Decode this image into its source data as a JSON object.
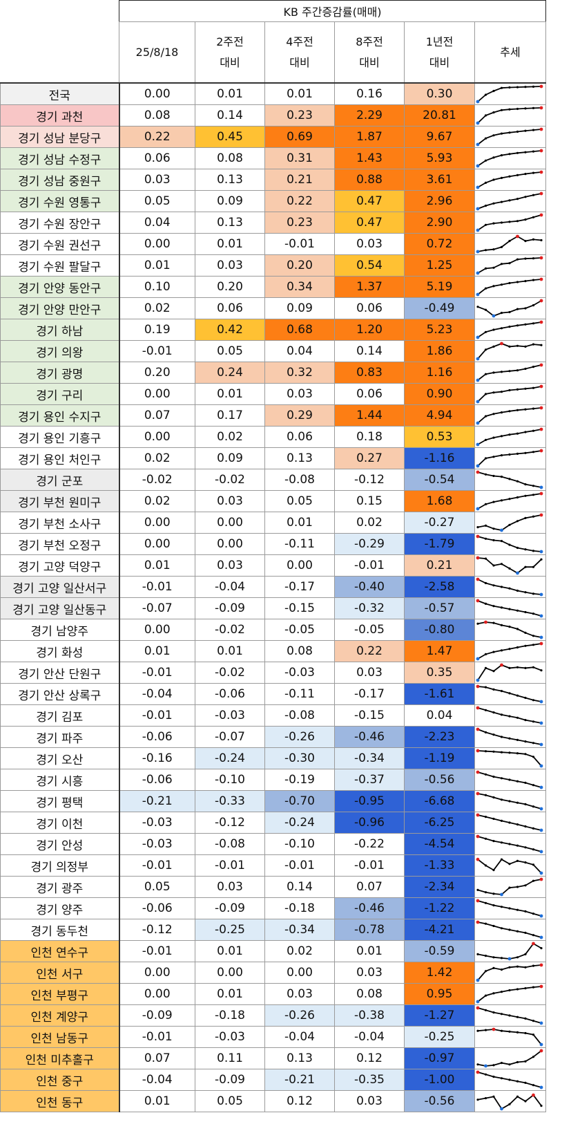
{
  "title": "KB 주간증감률(매매)",
  "headers": [
    [
      "25/8/18"
    ],
    [
      "2주전",
      "대비"
    ],
    [
      "4주전",
      "대비"
    ],
    [
      "8주전",
      "대비"
    ],
    [
      "1년전",
      "대비"
    ],
    [
      "추세"
    ]
  ],
  "rows": [
    {
      "name": "전국",
      "bg": "#f1f1f1",
      "values": [
        "0.00",
        "0.01",
        "0.01",
        "0.16",
        "0.30"
      ],
      "trend": [
        0.0,
        0.45,
        0.7,
        0.9,
        0.93,
        0.95,
        0.97,
        0.98,
        1.0
      ]
    },
    {
      "name": "경기 과천",
      "bg": "#f8c6c6",
      "values": [
        "0.08",
        "0.14",
        "0.23",
        "2.29",
        "20.81"
      ],
      "trend": [
        0.0,
        0.5,
        0.7,
        0.85,
        0.9,
        0.93,
        0.96,
        0.98,
        1.0
      ]
    },
    {
      "name": "경기 성남 분당구",
      "bg": "#f9ded8",
      "values": [
        "0.22",
        "0.45",
        "0.69",
        "1.87",
        "9.67"
      ],
      "trend": [
        0.0,
        0.4,
        0.6,
        0.72,
        0.78,
        0.84,
        0.9,
        0.95,
        1.0
      ]
    },
    {
      "name": "경기 성남 수정구",
      "bg": "#e2efda",
      "values": [
        "0.06",
        "0.08",
        "0.31",
        "1.43",
        "5.93"
      ],
      "trend": [
        0.0,
        0.35,
        0.55,
        0.7,
        0.78,
        0.85,
        0.9,
        0.95,
        1.0
      ]
    },
    {
      "name": "경기 성남 중원구",
      "bg": "#e2efda",
      "values": [
        "0.03",
        "0.13",
        "0.21",
        "0.88",
        "3.61"
      ],
      "trend": [
        0.0,
        0.3,
        0.5,
        0.62,
        0.72,
        0.8,
        0.88,
        0.95,
        1.0
      ]
    },
    {
      "name": "경기 수원 영통구",
      "bg": "#e2efda",
      "values": [
        "0.05",
        "0.09",
        "0.22",
        "0.47",
        "2.96"
      ],
      "trend": [
        0.0,
        0.2,
        0.35,
        0.45,
        0.55,
        0.65,
        0.78,
        0.9,
        1.0
      ]
    },
    {
      "name": "경기 수원 장안구",
      "bg": "#ffffff",
      "values": [
        "0.04",
        "0.13",
        "0.23",
        "0.47",
        "2.90"
      ],
      "trend": [
        0.0,
        0.35,
        0.45,
        0.5,
        0.55,
        0.6,
        0.7,
        0.85,
        1.0
      ]
    },
    {
      "name": "경기 수원 권선구",
      "bg": "#ffffff",
      "values": [
        "0.00",
        "0.01",
        "-0.01",
        "0.03",
        "0.72"
      ],
      "trend": [
        0.0,
        0.1,
        0.15,
        0.3,
        0.7,
        1.0,
        0.7,
        0.8,
        0.75
      ]
    },
    {
      "name": "경기 수원 팔달구",
      "bg": "#ffffff",
      "values": [
        "0.01",
        "0.03",
        "0.20",
        "0.54",
        "1.25"
      ],
      "trend": [
        0.0,
        0.3,
        0.35,
        0.6,
        0.65,
        0.9,
        0.95,
        0.97,
        1.0
      ]
    },
    {
      "name": "경기 안양 동안구",
      "bg": "#e2efda",
      "values": [
        "0.10",
        "0.20",
        "0.34",
        "1.37",
        "5.19"
      ],
      "trend": [
        0.0,
        0.4,
        0.55,
        0.65,
        0.75,
        0.82,
        0.88,
        0.95,
        1.0
      ]
    },
    {
      "name": "경기 안양 만안구",
      "bg": "#e2efda",
      "values": [
        "0.02",
        "0.06",
        "0.09",
        "0.06",
        "-0.49"
      ],
      "trend": [
        0.6,
        0.4,
        0.0,
        0.2,
        0.25,
        0.45,
        0.5,
        0.7,
        1.0
      ]
    },
    {
      "name": "경기 하남",
      "bg": "#e2efda",
      "values": [
        "0.19",
        "0.42",
        "0.68",
        "1.20",
        "5.23"
      ],
      "trend": [
        0.0,
        0.35,
        0.5,
        0.6,
        0.7,
        0.78,
        0.85,
        0.92,
        1.0
      ]
    },
    {
      "name": "경기 의왕",
      "bg": "#e2efda",
      "values": [
        "-0.01",
        "0.05",
        "0.04",
        "0.14",
        "1.86"
      ],
      "trend": [
        0.0,
        0.6,
        0.8,
        1.0,
        0.8,
        0.85,
        0.8,
        0.95,
        0.9
      ]
    },
    {
      "name": "경기 광명",
      "bg": "#e2efda",
      "values": [
        "0.20",
        "0.24",
        "0.32",
        "0.83",
        "1.16"
      ],
      "trend": [
        0.0,
        0.4,
        0.5,
        0.55,
        0.6,
        0.65,
        0.75,
        0.88,
        1.0
      ]
    },
    {
      "name": "경기 구리",
      "bg": "#e2efda",
      "values": [
        "0.00",
        "0.01",
        "0.03",
        "0.06",
        "0.90"
      ],
      "trend": [
        0.0,
        0.5,
        0.6,
        0.65,
        0.75,
        0.8,
        0.85,
        0.9,
        1.0
      ]
    },
    {
      "name": "경기 용인 수지구",
      "bg": "#e2efda",
      "values": [
        "0.07",
        "0.17",
        "0.29",
        "1.44",
        "4.94"
      ],
      "trend": [
        0.0,
        0.45,
        0.6,
        0.7,
        0.78,
        0.85,
        0.9,
        0.95,
        1.0
      ]
    },
    {
      "name": "경기 용인 기흥구",
      "bg": "#ffffff",
      "values": [
        "0.00",
        "0.02",
        "0.06",
        "0.18",
        "0.53"
      ],
      "trend": [
        0.0,
        0.3,
        0.45,
        0.55,
        0.65,
        0.72,
        0.82,
        0.9,
        1.0
      ]
    },
    {
      "name": "경기 용인 처인구",
      "bg": "#ffffff",
      "values": [
        "0.02",
        "0.09",
        "0.13",
        "0.27",
        "-1.16"
      ],
      "trend": [
        0.0,
        0.5,
        0.6,
        0.7,
        0.75,
        0.8,
        0.85,
        0.92,
        1.0
      ]
    },
    {
      "name": "경기 군포",
      "bg": "#ececec",
      "values": [
        "-0.02",
        "-0.02",
        "-0.08",
        "-0.12",
        "-0.54"
      ],
      "trend": [
        1.0,
        0.85,
        0.75,
        0.7,
        0.55,
        0.4,
        0.2,
        0.1,
        0.0
      ]
    },
    {
      "name": "경기 부천 원미구",
      "bg": "#ececec",
      "values": [
        "0.02",
        "0.03",
        "0.05",
        "0.15",
        "1.68"
      ],
      "trend": [
        0.0,
        0.3,
        0.45,
        0.55,
        0.65,
        0.75,
        0.85,
        0.92,
        1.0
      ]
    },
    {
      "name": "경기 부천 소사구",
      "bg": "#ffffff",
      "values": [
        "0.00",
        "0.00",
        "0.01",
        "0.02",
        "-0.27"
      ],
      "trend": [
        0.2,
        0.3,
        0.1,
        0.0,
        0.35,
        0.6,
        0.8,
        0.9,
        1.0
      ]
    },
    {
      "name": "경기 부천 오정구",
      "bg": "#ffffff",
      "values": [
        "0.00",
        "0.00",
        "-0.11",
        "-0.29",
        "-1.79"
      ],
      "trend": [
        1.0,
        0.85,
        0.75,
        0.7,
        0.45,
        0.25,
        0.15,
        0.05,
        0.0
      ]
    },
    {
      "name": "경기 고양 덕양구",
      "bg": "#ffffff",
      "values": [
        "0.01",
        "0.03",
        "0.00",
        "-0.01",
        "0.21"
      ],
      "trend": [
        1.0,
        0.95,
        0.5,
        0.6,
        0.3,
        0.0,
        0.4,
        0.4,
        0.9
      ]
    },
    {
      "name": "경기 고양 일산서구",
      "bg": "#ececec",
      "values": [
        "-0.01",
        "-0.04",
        "-0.17",
        "-0.40",
        "-2.58"
      ],
      "trend": [
        1.0,
        0.75,
        0.6,
        0.5,
        0.4,
        0.25,
        0.15,
        0.05,
        0.0
      ]
    },
    {
      "name": "경기 고양 일산동구",
      "bg": "#ececec",
      "values": [
        "-0.07",
        "-0.09",
        "-0.15",
        "-0.32",
        "-0.57"
      ],
      "trend": [
        1.0,
        0.8,
        0.65,
        0.55,
        0.45,
        0.35,
        0.25,
        0.15,
        0.0
      ]
    },
    {
      "name": "경기 남양주",
      "bg": "#ffffff",
      "values": [
        "0.00",
        "-0.02",
        "-0.05",
        "-0.05",
        "-0.80"
      ],
      "trend": [
        0.9,
        1.0,
        0.95,
        0.8,
        0.7,
        0.55,
        0.3,
        0.1,
        0.0
      ]
    },
    {
      "name": "경기 화성",
      "bg": "#ffffff",
      "values": [
        "0.01",
        "0.01",
        "0.08",
        "0.22",
        "1.47"
      ],
      "trend": [
        0.0,
        0.3,
        0.45,
        0.55,
        0.65,
        0.75,
        0.85,
        0.92,
        1.0
      ]
    },
    {
      "name": "경기 안산 단원구",
      "bg": "#ffffff",
      "values": [
        "-0.01",
        "-0.02",
        "-0.03",
        "0.03",
        "0.35"
      ],
      "trend": [
        0.0,
        0.8,
        0.6,
        1.0,
        0.8,
        0.85,
        0.8,
        0.85,
        0.65
      ]
    },
    {
      "name": "경기 안산 상록구",
      "bg": "#ffffff",
      "values": [
        "-0.04",
        "-0.06",
        "-0.11",
        "-0.17",
        "-1.61"
      ],
      "trend": [
        1.0,
        0.95,
        0.8,
        0.7,
        0.55,
        0.4,
        0.25,
        0.1,
        0.0
      ]
    },
    {
      "name": "경기 김포",
      "bg": "#ffffff",
      "values": [
        "-0.01",
        "-0.03",
        "-0.08",
        "-0.15",
        "0.04"
      ],
      "trend": [
        1.0,
        0.85,
        0.7,
        0.55,
        0.45,
        0.35,
        0.2,
        0.1,
        0.0
      ]
    },
    {
      "name": "경기 파주",
      "bg": "#ffffff",
      "values": [
        "-0.06",
        "-0.07",
        "-0.26",
        "-0.46",
        "-2.23"
      ],
      "trend": [
        1.0,
        0.8,
        0.65,
        0.5,
        0.4,
        0.3,
        0.2,
        0.1,
        0.0
      ]
    },
    {
      "name": "경기 오산",
      "bg": "#ffffff",
      "values": [
        "-0.16",
        "-0.24",
        "-0.30",
        "-0.34",
        "-1.19"
      ],
      "trend": [
        1.0,
        0.97,
        0.94,
        0.9,
        0.87,
        0.83,
        0.78,
        0.6,
        0.0
      ]
    },
    {
      "name": "경기 시흥",
      "bg": "#ffffff",
      "values": [
        "-0.06",
        "-0.10",
        "-0.19",
        "-0.37",
        "-0.56"
      ],
      "trend": [
        1.0,
        0.85,
        0.7,
        0.6,
        0.5,
        0.4,
        0.3,
        0.15,
        0.0
      ]
    },
    {
      "name": "경기 평택",
      "bg": "#ffffff",
      "values": [
        "-0.21",
        "-0.33",
        "-0.70",
        "-0.95",
        "-6.68"
      ],
      "trend": [
        1.0,
        0.9,
        0.75,
        0.6,
        0.5,
        0.4,
        0.3,
        0.15,
        0.0
      ]
    },
    {
      "name": "경기 이천",
      "bg": "#ffffff",
      "values": [
        "-0.03",
        "-0.12",
        "-0.24",
        "-0.96",
        "-6.25"
      ],
      "trend": [
        1.0,
        0.88,
        0.75,
        0.62,
        0.5,
        0.38,
        0.25,
        0.12,
        0.0
      ]
    },
    {
      "name": "경기 안성",
      "bg": "#ffffff",
      "values": [
        "-0.03",
        "-0.08",
        "-0.10",
        "-0.22",
        "-4.54"
      ],
      "trend": [
        1.0,
        0.85,
        0.7,
        0.6,
        0.5,
        0.4,
        0.28,
        0.15,
        0.0
      ]
    },
    {
      "name": "경기 의정부",
      "bg": "#ffffff",
      "values": [
        "-0.01",
        "-0.01",
        "-0.01",
        "-0.01",
        "-1.33"
      ],
      "trend": [
        0.9,
        0.5,
        0.2,
        0.9,
        0.6,
        0.8,
        0.7,
        0.55,
        0.0
      ]
    },
    {
      "name": "경기 광주",
      "bg": "#ffffff",
      "values": [
        "0.05",
        "0.03",
        "0.14",
        "0.07",
        "-2.34"
      ],
      "trend": [
        0.3,
        0.15,
        0.05,
        0.0,
        0.45,
        0.5,
        0.6,
        0.9,
        1.0
      ]
    },
    {
      "name": "경기 양주",
      "bg": "#ffffff",
      "values": [
        "-0.06",
        "-0.09",
        "-0.18",
        "-0.46",
        "-1.22"
      ],
      "trend": [
        1.0,
        0.85,
        0.7,
        0.6,
        0.5,
        0.4,
        0.3,
        0.15,
        0.0
      ]
    },
    {
      "name": "경기 동두천",
      "bg": "#ffffff",
      "values": [
        "-0.12",
        "-0.25",
        "-0.34",
        "-0.78",
        "-4.21"
      ],
      "trend": [
        1.0,
        0.9,
        0.75,
        0.6,
        0.5,
        0.4,
        0.3,
        0.15,
        0.0
      ]
    },
    {
      "name": "인천 연수구",
      "bg": "#ffc766",
      "values": [
        "-0.01",
        "0.01",
        "0.02",
        "0.01",
        "-0.59"
      ],
      "trend": [
        0.3,
        0.2,
        0.1,
        0.05,
        0.0,
        0.1,
        0.3,
        1.0,
        0.7
      ]
    },
    {
      "name": "인천 서구",
      "bg": "#ffc766",
      "values": [
        "0.00",
        "0.00",
        "0.00",
        "0.03",
        "1.42"
      ],
      "trend": [
        0.0,
        0.6,
        0.8,
        0.7,
        0.85,
        0.9,
        0.85,
        0.95,
        1.0
      ]
    },
    {
      "name": "인천 부평구",
      "bg": "#ffc766",
      "values": [
        "0.00",
        "0.01",
        "0.03",
        "0.08",
        "0.95"
      ],
      "trend": [
        0.0,
        0.4,
        0.55,
        0.65,
        0.75,
        0.82,
        0.88,
        0.95,
        1.0
      ]
    },
    {
      "name": "인천 계양구",
      "bg": "#ffc766",
      "values": [
        "-0.09",
        "-0.18",
        "-0.26",
        "-0.38",
        "-1.27"
      ],
      "trend": [
        1.0,
        0.85,
        0.7,
        0.6,
        0.5,
        0.4,
        0.3,
        0.15,
        0.0
      ]
    },
    {
      "name": "인천 남동구",
      "bg": "#ffc766",
      "values": [
        "-0.01",
        "-0.03",
        "-0.04",
        "-0.04",
        "-0.25"
      ],
      "trend": [
        0.9,
        0.95,
        1.0,
        0.9,
        0.85,
        0.8,
        0.75,
        0.65,
        0.0
      ]
    },
    {
      "name": "인천 미추홀구",
      "bg": "#ffc766",
      "values": [
        "0.07",
        "0.11",
        "0.13",
        "0.12",
        "-0.97"
      ],
      "trend": [
        0.1,
        0.0,
        0.05,
        0.2,
        0.1,
        0.25,
        0.3,
        0.6,
        1.0
      ]
    },
    {
      "name": "인천 중구",
      "bg": "#ffc766",
      "values": [
        "-0.04",
        "-0.09",
        "-0.21",
        "-0.35",
        "-1.00"
      ],
      "trend": [
        1.0,
        0.85,
        0.7,
        0.6,
        0.5,
        0.4,
        0.3,
        0.15,
        0.0
      ]
    },
    {
      "name": "인천 동구",
      "bg": "#ffc766",
      "values": [
        "0.01",
        "0.05",
        "0.12",
        "0.03",
        "-0.56"
      ],
      "trend": [
        0.6,
        0.7,
        0.8,
        0.0,
        0.3,
        0.8,
        0.5,
        0.9,
        0.2
      ]
    }
  ],
  "colors": {
    "pos_light": "#f8cbad",
    "pos_mid": "#ffc133",
    "pos_strong": "#fd7e14",
    "neg_light": "#ddebf7",
    "neg_mid": "#9db7e0",
    "neg_strong": "#2f62d6",
    "trend_line": "#000000",
    "trend_max": "#e02020",
    "trend_min": "#1f6fd8"
  }
}
